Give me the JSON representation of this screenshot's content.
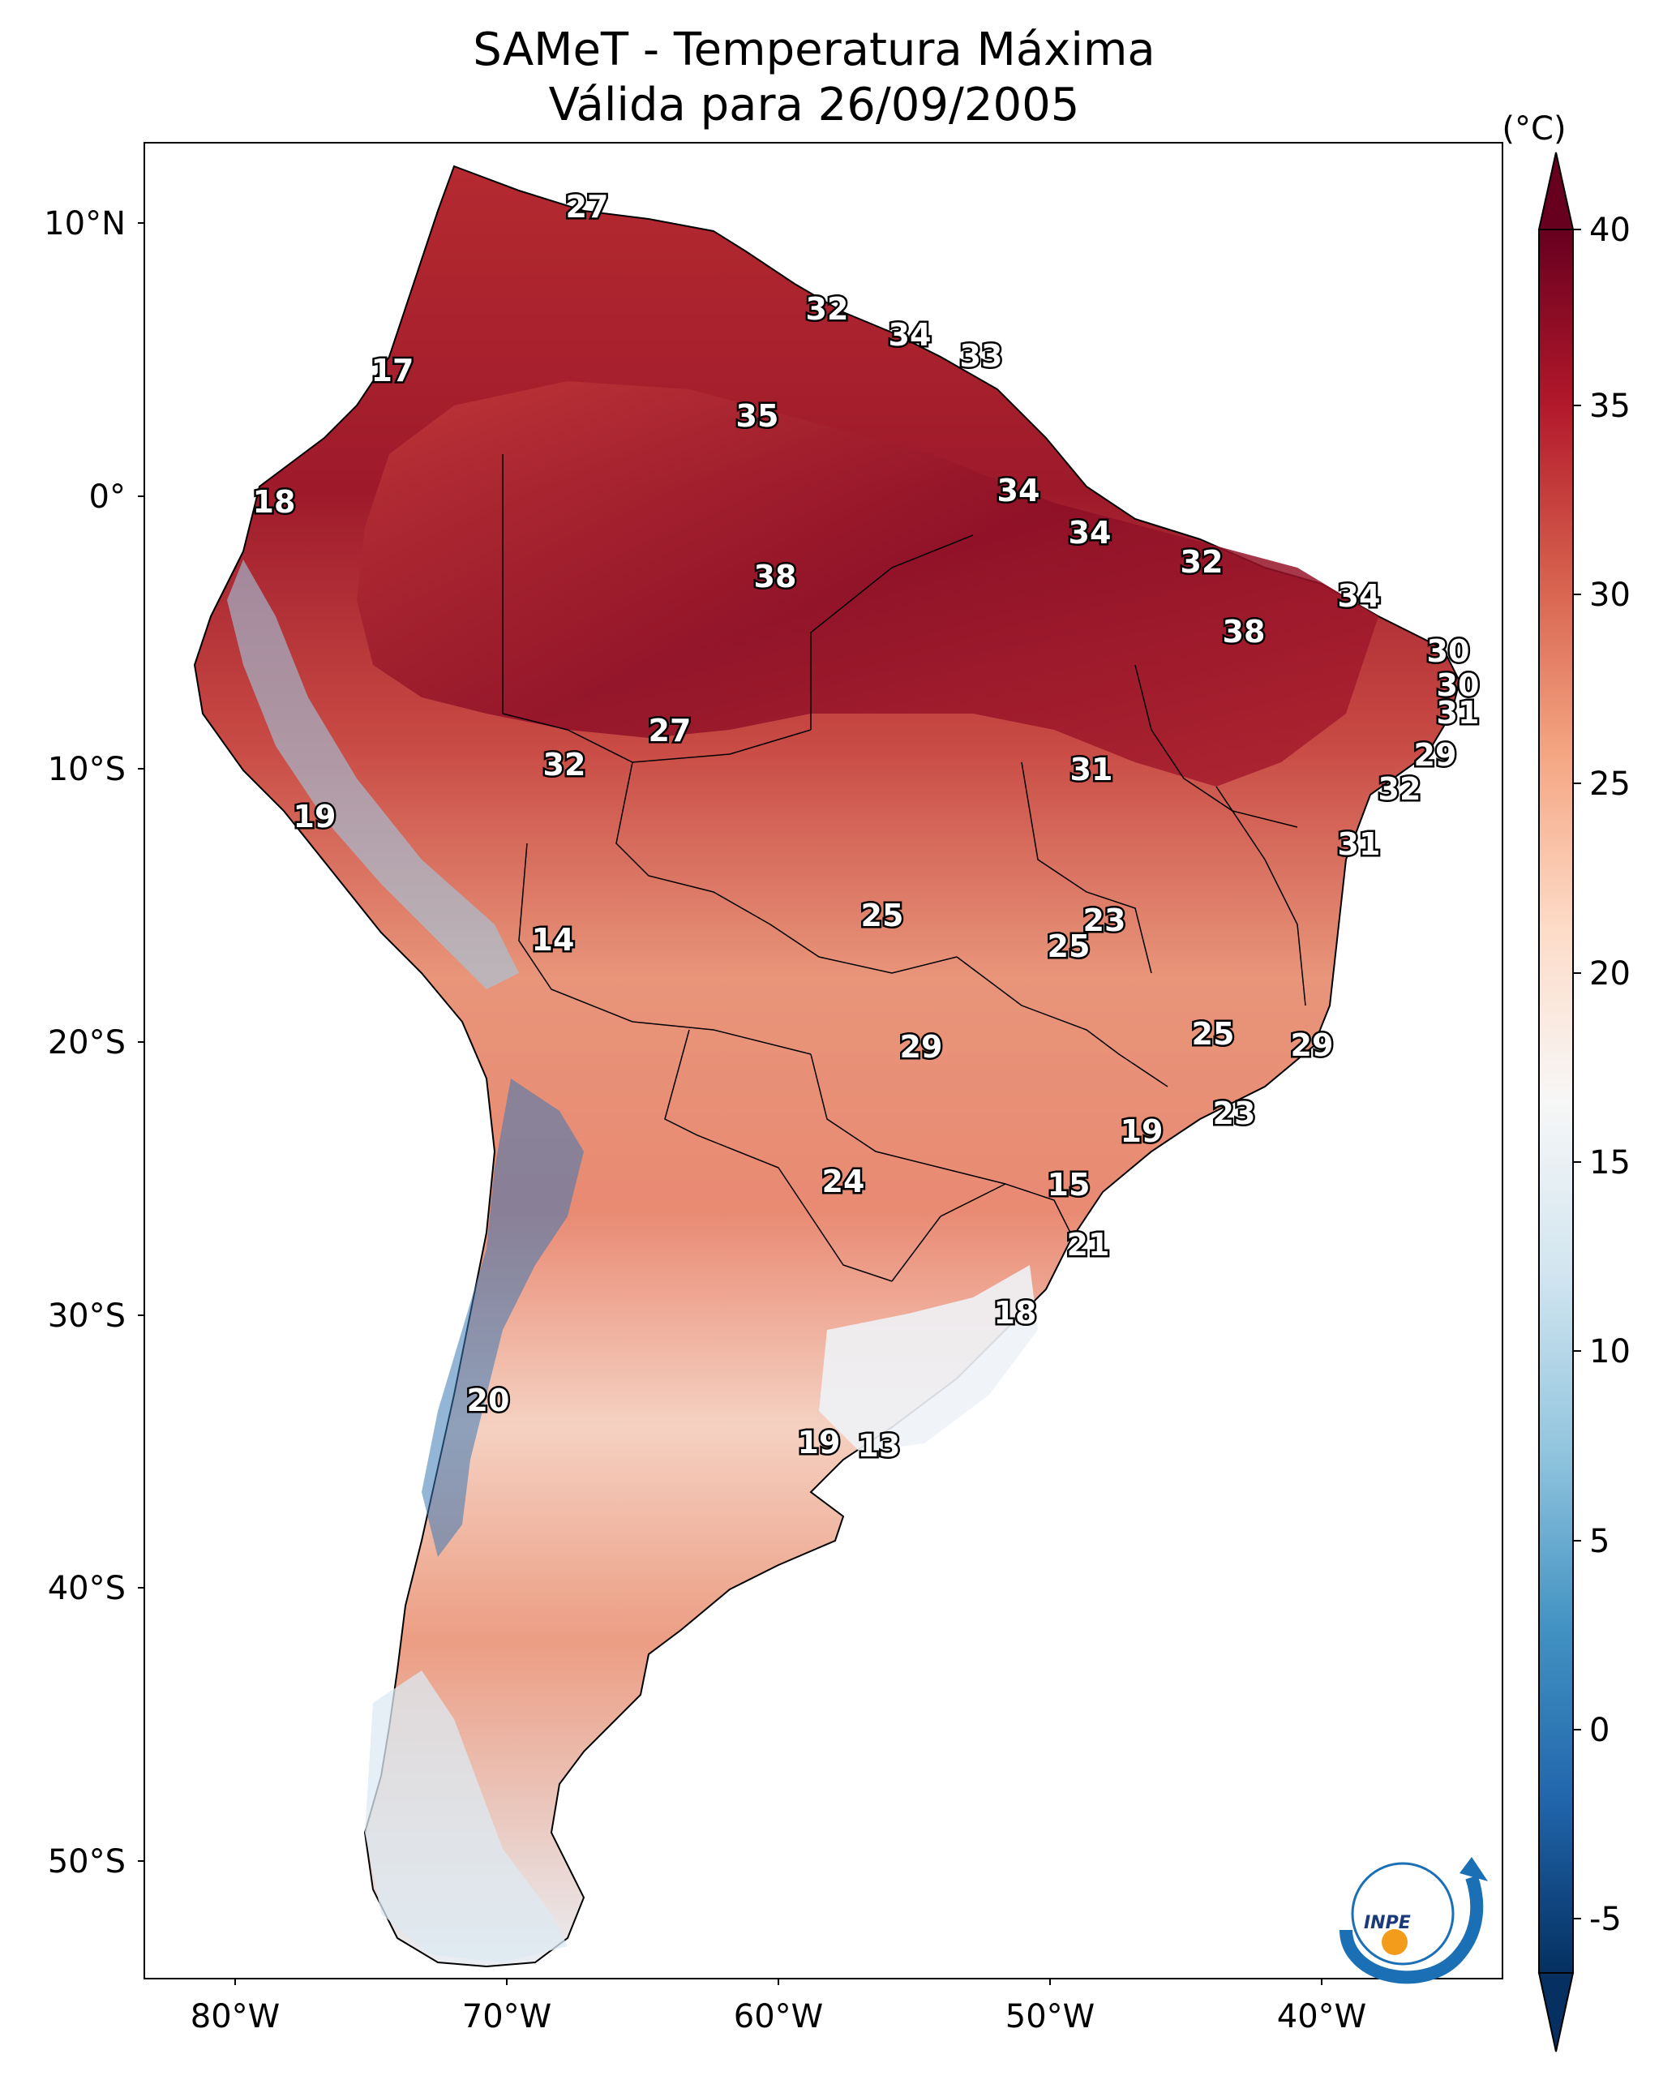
{
  "title_line1": "SAMeT - Temperatura Máxima",
  "title_line2": "Válida para 26/09/2005",
  "colorbar": {
    "unit_label": "(°C)",
    "ticks": [
      "40",
      "35",
      "30",
      "25",
      "20",
      "15",
      "10",
      "5",
      "0",
      "-5"
    ],
    "colors": [
      "#67001f",
      "#b2182b",
      "#d6604d",
      "#f4a582",
      "#fddbc7",
      "#f7f7f7",
      "#d1e5f0",
      "#92c5de",
      "#4393c3",
      "#2166ac",
      "#053061"
    ]
  },
  "axes": {
    "lat_labels": [
      "10°N",
      "0°",
      "10°S",
      "20°S",
      "30°S",
      "40°S",
      "50°S"
    ],
    "lon_labels": [
      "80°W",
      "70°W",
      "60°W",
      "50°W",
      "40°W"
    ]
  },
  "logo_text": "INPE",
  "labels": [
    "27",
    "32",
    "34",
    "33",
    "17",
    "35",
    "18",
    "34",
    "34",
    "32",
    "38",
    "34",
    "38",
    "30",
    "30",
    "31",
    "27",
    "32",
    "31",
    "29",
    "32",
    "19",
    "31",
    "25",
    "23",
    "25",
    "14",
    "29",
    "25",
    "29",
    "23",
    "19",
    "24",
    "15",
    "21",
    "18",
    "20",
    "19",
    "13"
  ]
}
